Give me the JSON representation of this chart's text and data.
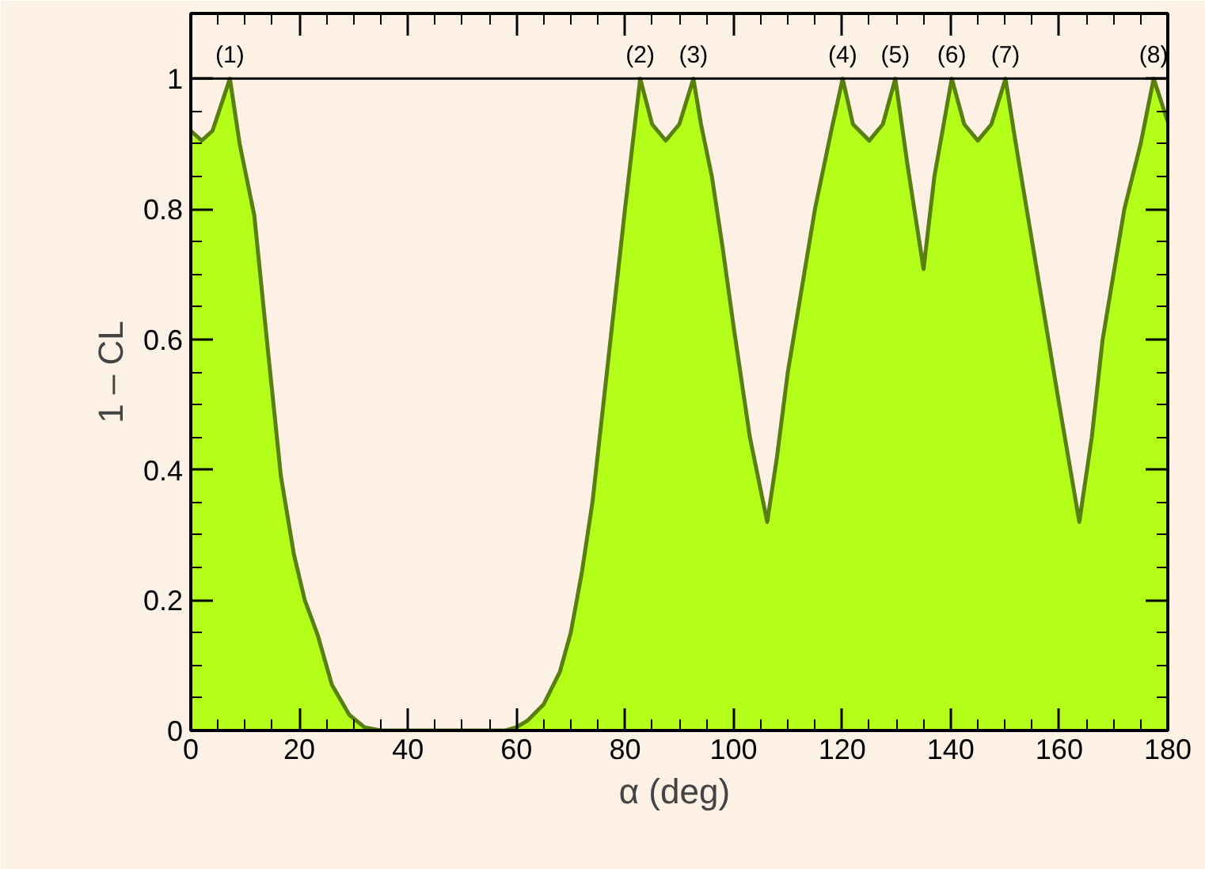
{
  "chart_data": {
    "type": "area",
    "xlabel": "α  (deg)",
    "ylabel": "1 – CL",
    "xlim": [
      0,
      180
    ],
    "ylim": [
      0,
      1.1
    ],
    "xticks": [
      0,
      20,
      40,
      60,
      80,
      100,
      120,
      140,
      160,
      180
    ],
    "yticks": [
      0,
      0.2,
      0.4,
      0.6,
      0.8,
      1
    ],
    "series": [
      {
        "color": "#b3ff1a",
        "x": [
          0,
          2,
          4,
          7.2,
          9,
          11.7,
          14,
          16.6,
          19,
          21,
          23.4,
          26,
          29.2,
          32,
          35,
          40,
          50,
          55,
          58,
          60,
          62,
          65,
          68,
          70,
          72,
          74,
          76,
          78,
          80,
          82.8,
          85,
          87.5,
          90,
          92.6,
          94,
          96,
          98,
          100,
          103,
          106.2,
          108,
          110,
          113,
          115,
          118,
          120.1,
          122,
          125,
          127.5,
          129.8,
          132,
          135,
          137,
          140.2,
          142.5,
          145,
          147.5,
          150.1,
          152,
          155,
          158,
          160,
          163.7,
          166,
          168,
          170,
          172,
          175,
          177.4,
          180
        ],
        "values": [
          0.92,
          0.905,
          0.92,
          1.0,
          0.9,
          0.79,
          0.6,
          0.39,
          0.27,
          0.2,
          0.146,
          0.07,
          0.024,
          0.005,
          0,
          0,
          0,
          0,
          0,
          0.005,
          0.015,
          0.04,
          0.09,
          0.15,
          0.24,
          0.35,
          0.5,
          0.65,
          0.8,
          1.0,
          0.93,
          0.905,
          0.93,
          1.0,
          0.93,
          0.85,
          0.74,
          0.62,
          0.45,
          0.32,
          0.42,
          0.55,
          0.7,
          0.8,
          0.92,
          1.0,
          0.93,
          0.905,
          0.93,
          1.0,
          0.87,
          0.708,
          0.85,
          1.0,
          0.93,
          0.905,
          0.93,
          1.0,
          0.9,
          0.75,
          0.6,
          0.5,
          0.32,
          0.45,
          0.6,
          0.7,
          0.8,
          0.9,
          1.0,
          0.934
        ]
      }
    ],
    "ref_lines": [
      {
        "axis": "y",
        "value": 1,
        "color": "#000000"
      }
    ],
    "annotations": [
      {
        "text": "(1)",
        "x": 7.2,
        "y": 1
      },
      {
        "text": "(2)",
        "x": 82.8,
        "y": 1
      },
      {
        "text": "(3)",
        "x": 92.6,
        "y": 1
      },
      {
        "text": "(4)",
        "x": 120.1,
        "y": 1
      },
      {
        "text": "(5)",
        "x": 129.8,
        "y": 1
      },
      {
        "text": "(6)",
        "x": 140.2,
        "y": 1
      },
      {
        "text": "(7)",
        "x": 150.1,
        "y": 1
      },
      {
        "text": "(8)",
        "x": 177.4,
        "y": 1
      }
    ],
    "grid": false
  }
}
